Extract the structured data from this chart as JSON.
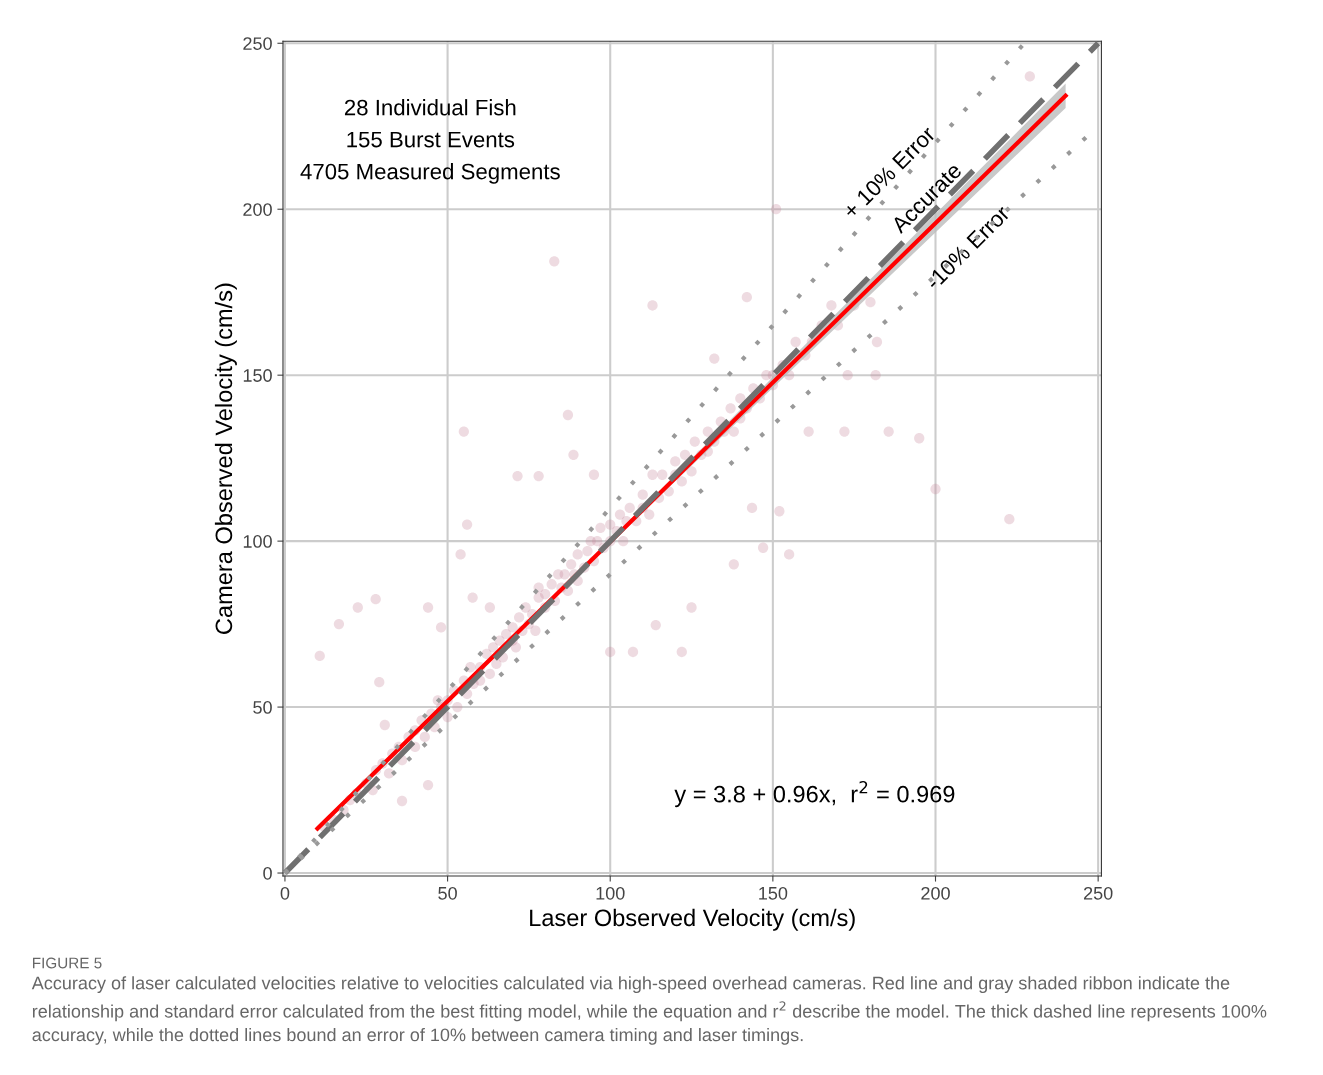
{
  "chart_data": {
    "type": "scatter",
    "xlabel": "Laser Observed Velocity (cm/s)",
    "ylabel": "Camera Observed Velocity (cm/s)",
    "xlim": [
      -0.6,
      251
    ],
    "ylim": [
      -0.9,
      250.6
    ],
    "xticks": [
      0,
      50,
      100,
      150,
      200,
      250
    ],
    "yticks": [
      0,
      50,
      100,
      150,
      200,
      250
    ],
    "grid": true,
    "series": [
      {
        "marker": "circle",
        "color": "#c7879b",
        "x": [
          10.7,
          16.6,
          22.4,
          27.9,
          82.8,
          113,
          151,
          229,
          200,
          222.7,
          195,
          185.6,
          172,
          155,
          147,
          87,
          55,
          56,
          44,
          36,
          114,
          122,
          100,
          107,
          125,
          138,
          143.6,
          152,
          161,
          182,
          181.6,
          173,
          132,
          142,
          78,
          71.5,
          88.7,
          95,
          48,
          54,
          29,
          30.7,
          44,
          57.7,
          63,
          12,
          15,
          18,
          20,
          22,
          25,
          27,
          28,
          30,
          32,
          33,
          35,
          36,
          38,
          40,
          40,
          42,
          43,
          45,
          46,
          47,
          48,
          50,
          50,
          52,
          53,
          55,
          56,
          57,
          58,
          60,
          60,
          62,
          63,
          64,
          65,
          66,
          67,
          68,
          70,
          70,
          71,
          72,
          73,
          74,
          75,
          76,
          77,
          78,
          78,
          80,
          80,
          82,
          83,
          84,
          85,
          86,
          87,
          88,
          89,
          90,
          90,
          92,
          93,
          94,
          95,
          96,
          97,
          98,
          100,
          100,
          102,
          103,
          104,
          105,
          106,
          108,
          110,
          110,
          112,
          113,
          115,
          116,
          118,
          120,
          120,
          122,
          123,
          125,
          126,
          128,
          130,
          130,
          132,
          134,
          135,
          137,
          138,
          140,
          140,
          142,
          144,
          146,
          148,
          150,
          150,
          153,
          155,
          157,
          160,
          162,
          165,
          168,
          170,
          175,
          180
        ],
        "values": [
          65.4,
          75,
          80,
          82.5,
          184.3,
          171,
          200,
          240,
          115.7,
          106.6,
          131,
          133,
          133,
          96,
          98,
          138,
          133,
          105,
          26.5,
          21.7,
          74.7,
          66.6,
          66.6,
          66.6,
          80,
          93,
          110,
          109,
          133,
          160,
          150,
          150,
          155,
          173.5,
          119.6,
          119.6,
          126,
          120,
          74,
          96,
          57.5,
          44.6,
          80,
          83,
          80,
          14,
          16,
          19,
          22,
          24,
          27,
          25,
          31,
          33,
          30,
          36,
          38,
          34,
          41,
          43,
          38,
          46,
          41,
          48,
          44,
          52,
          50,
          52,
          47,
          55,
          50,
          58,
          54,
          62,
          57,
          62,
          58,
          66,
          60,
          68,
          63,
          70,
          65,
          72,
          70,
          74,
          68,
          77,
          73,
          80,
          75,
          78,
          73,
          83,
          86,
          80,
          84,
          87,
          82,
          90,
          86,
          90,
          85,
          93,
          90,
          96,
          88,
          92,
          97,
          100,
          94,
          100,
          104,
          98,
          100,
          105,
          103,
          108,
          100,
          106,
          110,
          106,
          110,
          114,
          108,
          120,
          113,
          120,
          115,
          120,
          124,
          118,
          126,
          121,
          130,
          126,
          133,
          127,
          130,
          136,
          133,
          140,
          133,
          143,
          137,
          140,
          146,
          143,
          150,
          147,
          150,
          153,
          150,
          160,
          156,
          160,
          165,
          171,
          165,
          171,
          172
        ]
      },
      {
        "type": "line",
        "color": "#ff0000",
        "line_style": "solid",
        "x": [
          10,
          100,
          240
        ],
        "values": [
          13.4,
          99.8,
          234.2
        ],
        "lower": [
          12.6,
          99.3,
          230.5
        ],
        "upper": [
          14.2,
          100.3,
          237.9
        ]
      },
      {
        "type": "line",
        "color": "#707070",
        "line_style": "dashed",
        "x": [
          0,
          250
        ],
        "values": [
          0,
          250
        ]
      },
      {
        "type": "line",
        "color": "#999999",
        "line_style": "dotted",
        "x": [
          0,
          227.3
        ],
        "values": [
          0,
          250
        ]
      },
      {
        "type": "line",
        "color": "#999999",
        "line_style": "dotted",
        "x": [
          0,
          250
        ],
        "values": [
          0,
          225
        ]
      }
    ],
    "annotations": [
      "+ 10% Error",
      "Accurate",
      "-10% Error",
      "28 Individual Fish\n155 Burst Events\n4705 Measured Segments",
      "y = 3.8 + 0.96x,  r$^{2}$ = 0.969",
      "FIGURE 5",
      "Accuracy of laser calculated velocities relative to velocities calculated via high-speed overhead cameras. Red line and gray shaded ribbon indicate the relationship and standard error calculated from the best fitting model, while the equation and r$^{2}$ describe the model. The thick dashed line represents 100% accuracy, while the dotted lines bound an error of 10% between camera timing and laser timings."
    ]
  }
}
